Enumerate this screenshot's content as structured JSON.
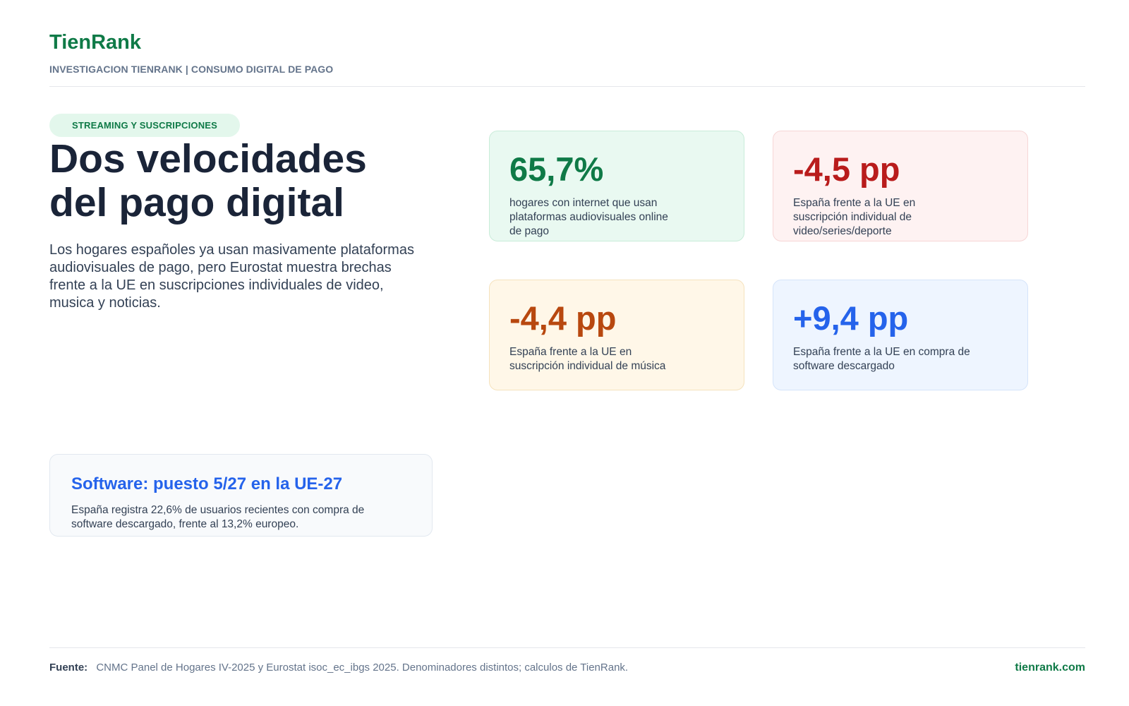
{
  "header": {
    "brand": "TienRank",
    "kicker": "INVESTIGACION TIENRANK | CONSUMO DIGITAL DE PAGO"
  },
  "hero": {
    "tag": "STREAMING Y SUSCRIPCIONES",
    "headline_line1": "Dos velocidades",
    "headline_line2": "del pago digital",
    "lede": "Los hogares españoles ya usan masivamente plataformas audiovisuales de pago, pero Eurostat muestra brechas frente a la UE en suscripciones individuales de video, musica y noticias."
  },
  "stats": [
    {
      "value": "65,7%",
      "desc": "hogares con internet que usan plataformas audiovisuales online de pago",
      "color": "#0f7a47"
    },
    {
      "value": "-4,5 pp",
      "desc": "España frente a la UE en suscripción individual de video/series/deporte",
      "color": "#b91c1c"
    },
    {
      "value": "-4,4 pp",
      "desc": "España frente a la UE en suscripción individual de música",
      "color": "#b8480f"
    },
    {
      "value": "+9,4 pp",
      "desc": "España frente a la UE en compra de software descargado",
      "color": "#2563eb"
    }
  ],
  "callout": {
    "title": "Software: puesto 5/27 en la UE-27",
    "text": "España registra 22,6% de usuarios recientes con compra de software descargado, frente al 13,2% europeo."
  },
  "footer": {
    "source_label": "Fuente:",
    "source_text": "CNMC Panel de Hogares IV-2025 y Eurostat isoc_ec_ibgs 2025. Denominadores distintos; calculos de TienRank.",
    "site": "tienrank.com"
  }
}
